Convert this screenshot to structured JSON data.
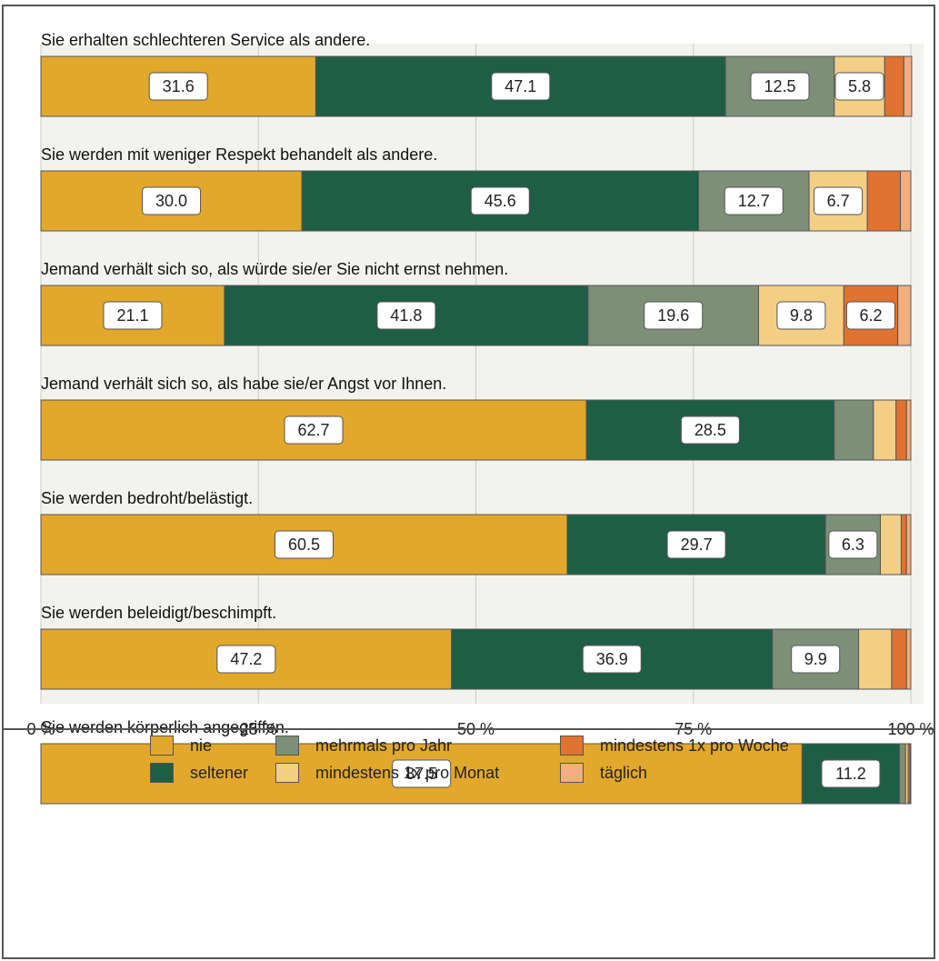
{
  "chart_data": {
    "type": "bar",
    "orientation": "horizontal",
    "stacked": true,
    "percent": true,
    "categories": [
      "Sie erhalten schlechteren Service als andere.",
      "Sie werden mit weniger Respekt behandelt als andere.",
      "Jemand verhält sich so, als würde sie/er Sie nicht ernst nehmen.",
      "Jemand verhält sich so, als habe sie/er Angst vor Ihnen.",
      "Sie werden bedroht/belästigt.",
      "Sie werden beleidigt/beschimpft.",
      "Sie werden körperlich angegriffen."
    ],
    "series": [
      {
        "name": "nie",
        "color": "#E2A82B",
        "values": [
          31.6,
          30.0,
          21.1,
          62.7,
          60.5,
          47.2,
          87.5
        ]
      },
      {
        "name": "seltener",
        "color": "#1F5E46",
        "values": [
          47.1,
          45.6,
          41.8,
          28.5,
          29.7,
          36.9,
          11.2
        ]
      },
      {
        "name": "mehrmals pro Jahr",
        "color": "#7D8F77",
        "values": [
          12.5,
          12.7,
          19.6,
          4.5,
          6.3,
          9.9,
          0.7
        ]
      },
      {
        "name": "mindestens 1x pro Monat",
        "color": "#F3CF86",
        "values": [
          5.8,
          6.7,
          9.8,
          2.6,
          2.4,
          3.8,
          0.3
        ]
      },
      {
        "name": "mindestens 1x pro Woche",
        "color": "#E07232",
        "values": [
          2.2,
          3.8,
          6.2,
          1.2,
          0.6,
          1.7,
          0.2
        ]
      },
      {
        "name": "täglich",
        "color": "#F2AE80",
        "values": [
          0.9,
          1.2,
          1.5,
          0.5,
          0.5,
          0.5,
          0.1
        ]
      }
    ],
    "data_labels": [
      [
        "31.6",
        "47.1",
        "12.5",
        "5.8",
        "",
        ""
      ],
      [
        "30.0",
        "45.6",
        "12.7",
        "6.7",
        "",
        ""
      ],
      [
        "21.1",
        "41.8",
        "19.6",
        "9.8",
        "6.2",
        ""
      ],
      [
        "62.7",
        "28.5",
        "",
        "",
        "",
        ""
      ],
      [
        "60.5",
        "29.7",
        "6.3",
        "",
        "",
        ""
      ],
      [
        "47.2",
        "36.9",
        "9.9",
        "",
        "",
        ""
      ],
      [
        "87.5",
        "11.2",
        "",
        "",
        "",
        ""
      ]
    ],
    "xlim": [
      0,
      100
    ],
    "xticks": [
      0,
      25,
      50,
      75,
      100
    ],
    "xtick_labels": [
      "0 %",
      "25 %",
      "50 %",
      "75 %",
      "100 %"
    ],
    "grid": true,
    "legend_position": "bottom"
  },
  "legend": {
    "items": [
      {
        "label": "nie",
        "color": "#E2A82B"
      },
      {
        "label": "seltener",
        "color": "#1F5E46"
      },
      {
        "label": "mehrmals pro Jahr",
        "color": "#7D8F77"
      },
      {
        "label": "mindestens 1x pro Monat",
        "color": "#F3CF86"
      },
      {
        "label": "mindestens 1x pro Woche",
        "color": "#E07232"
      },
      {
        "label": "täglich",
        "color": "#F2AE80"
      }
    ]
  }
}
